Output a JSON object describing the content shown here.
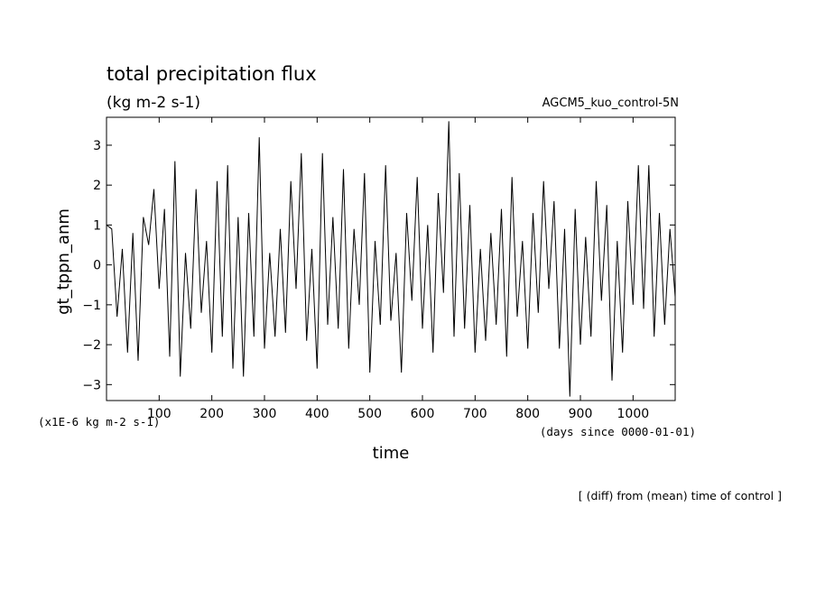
{
  "chart_data": {
    "type": "line",
    "title": "total precipitation flux",
    "subtitle": "(kg m-2 s-1)",
    "experiment_label": "AGCM5_kuo_control-5N",
    "xlabel": "time",
    "ylabel": "gt_tppn_anm",
    "y_scale_note": "(x1E-6 kg m-2 s-1)",
    "x_unit_note": "(days since 0000-01-01)",
    "footnote": "[ (diff) from (mean) time of control ]",
    "xlim": [
      0,
      1080
    ],
    "ylim": [
      -3.4,
      3.7
    ],
    "x_ticks": [
      100,
      200,
      300,
      400,
      500,
      600,
      700,
      800,
      900,
      1000
    ],
    "x_tick_labels": [
      "100",
      "200",
      "300",
      "400",
      "500",
      "600",
      "700",
      "800",
      "900",
      "1000"
    ],
    "y_ticks": [
      -3,
      -2,
      -1,
      0,
      1,
      2,
      3
    ],
    "y_tick_labels": [
      "−3",
      "−2",
      "−1",
      "0",
      "1",
      "2",
      "3"
    ],
    "grid": false,
    "series": [
      {
        "color": "#000000",
        "x": [
          0,
          10,
          20,
          30,
          40,
          50,
          60,
          70,
          80,
          90,
          100,
          110,
          120,
          130,
          140,
          150,
          160,
          170,
          180,
          190,
          200,
          210,
          220,
          230,
          240,
          250,
          260,
          270,
          280,
          290,
          300,
          310,
          320,
          330,
          340,
          350,
          360,
          370,
          380,
          390,
          400,
          410,
          420,
          430,
          440,
          450,
          460,
          470,
          480,
          490,
          500,
          510,
          520,
          530,
          540,
          550,
          560,
          570,
          580,
          590,
          600,
          610,
          620,
          630,
          640,
          650,
          660,
          670,
          680,
          690,
          700,
          710,
          720,
          730,
          740,
          750,
          760,
          770,
          780,
          790,
          800,
          810,
          820,
          830,
          840,
          850,
          860,
          870,
          880,
          890,
          900,
          910,
          920,
          930,
          940,
          950,
          960,
          970,
          980,
          990,
          1000,
          1010,
          1020,
          1030,
          1040,
          1050,
          1060,
          1070,
          1080
        ],
        "values": [
          1.0,
          0.9,
          -1.3,
          0.4,
          -2.2,
          0.8,
          -2.4,
          1.2,
          0.5,
          1.9,
          -0.6,
          1.4,
          -2.3,
          2.6,
          -2.8,
          0.3,
          -1.6,
          1.9,
          -1.2,
          0.6,
          -2.2,
          2.1,
          -1.8,
          2.5,
          -2.6,
          1.2,
          -2.8,
          1.3,
          -1.8,
          3.2,
          -2.1,
          0.3,
          -1.8,
          0.9,
          -1.7,
          2.1,
          -0.6,
          2.8,
          -1.9,
          0.4,
          -2.6,
          2.8,
          -1.5,
          1.2,
          -1.6,
          2.4,
          -2.1,
          0.9,
          -1.0,
          2.3,
          -2.7,
          0.6,
          -1.5,
          2.5,
          -1.4,
          0.3,
          -2.7,
          1.3,
          -0.9,
          2.2,
          -1.6,
          1.0,
          -2.2,
          1.8,
          -0.7,
          3.6,
          -1.8,
          2.3,
          -1.6,
          1.5,
          -2.2,
          0.4,
          -1.9,
          0.8,
          -1.5,
          1.4,
          -2.3,
          2.2,
          -1.3,
          0.6,
          -2.1,
          1.3,
          -1.2,
          2.1,
          -0.6,
          1.6,
          -2.1,
          0.9,
          -3.3,
          1.4,
          -2.0,
          0.7,
          -1.8,
          2.1,
          -0.9,
          1.5,
          -2.9,
          0.6,
          -2.2,
          1.6,
          -1.0,
          2.5,
          -1.1,
          2.5,
          -1.8,
          1.3,
          -1.5,
          0.9,
          -0.8
        ]
      }
    ]
  }
}
